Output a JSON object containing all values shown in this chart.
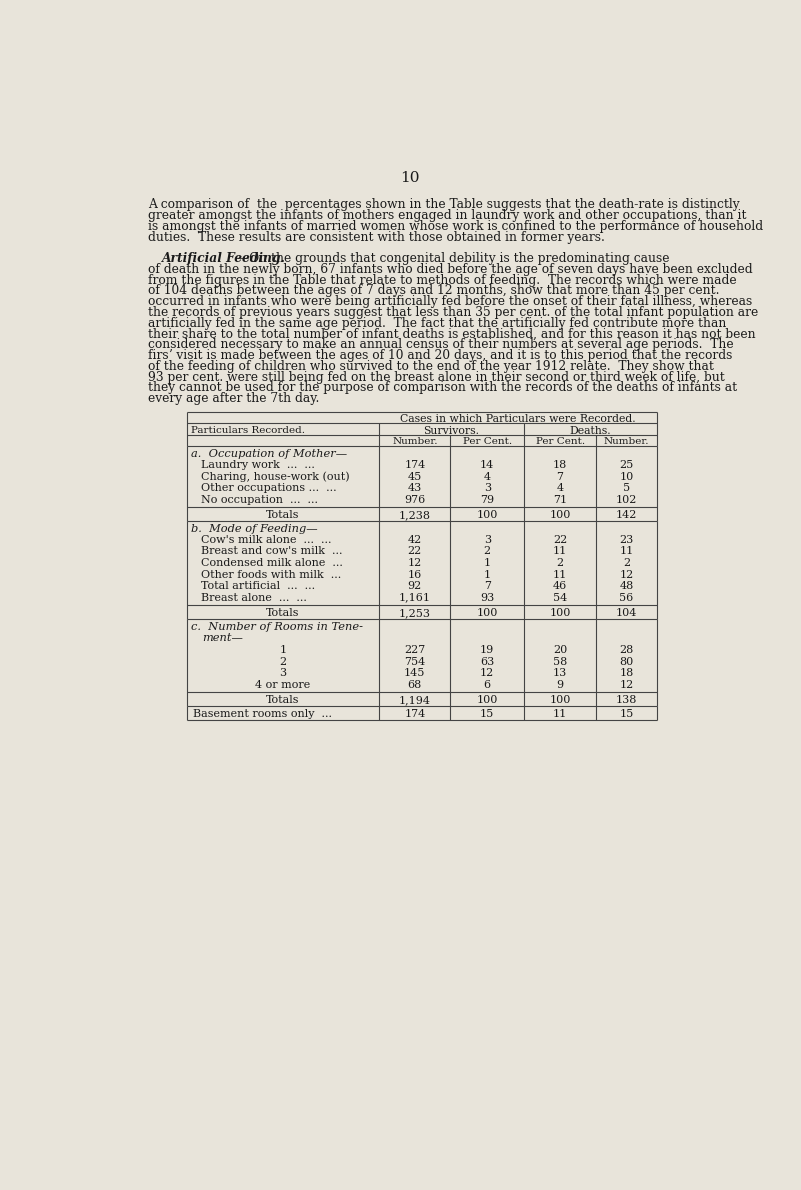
{
  "page_number": "10",
  "bg_color": "#e8e4da",
  "text_color": "#1a1a1a",
  "p1_lines": [
    "A comparison of  the  percentages shown in the Table suggests that the death-rate is distinctly",
    "greater amongst the infants of mothers engaged in laundry work and other occupations, than it",
    "is amongst the infants of married women whose work is confined to the performance of household",
    "duties.  These results are consistent with those obtained in former years."
  ],
  "p2_title": "Artificial Feeding.",
  "p2_first": "—On the grounds that congenital debility is the predominating cause",
  "p2_rest": [
    "of death in the newly born, 67 infants who died before the age of seven days have been excluded",
    "from the figures in the Table that relate to methods of feeding.  The records which were made",
    "of 104 deaths between the ages of 7 days and 12 months, show that more than 45 per cent.",
    "occurred in infants who were being artificially fed before the onset of their fatal illness, whereas",
    "the records of previous years suggest that less than 35 per cent. of the total infant population are",
    "artificially fed in the same age period.  The fact that the artificially fed contribute more than",
    "their share to the total number of infant deaths is established, and for this reason it has not been",
    "considered necessary to make an annual census of their numbers at several age periods.  The",
    "firsʼ visit is made between the ages of 10 and 20 days, and it is to this period that the records",
    "of the feeding of children who survived to the end of the year 1912 relate.  They show that",
    "93 per cent. were still being fed on the breast alone in their second or third week of life, but",
    "they cannot be used for the purpose of comparison with the records of the deaths of infants at",
    "every age after the 7th day."
  ],
  "table": {
    "header_main": "Cases in which Particulars were Recorded.",
    "header_survivors": "Survivors.",
    "header_deaths": "Deaths.",
    "col_headers": [
      "Number.",
      "Per Cent.",
      "Per Cent.",
      "Number."
    ],
    "section_a_title": "a.  Occupation of Mother—",
    "section_a_rows": [
      [
        "Laundry work  ...  ...",
        "174",
        "14",
        "18",
        "25"
      ],
      [
        "Charing, house-work (out)",
        "45",
        "4",
        "7",
        "10"
      ],
      [
        "Other occupations ...  ...",
        "43",
        "3",
        "4",
        "5"
      ],
      [
        "No occupation  ...  ...",
        "976",
        "79",
        "71",
        "102"
      ]
    ],
    "section_a_total": [
      "Totals",
      "1,238",
      "100",
      "100",
      "142"
    ],
    "section_b_title": "b.  Mode of Feeding—",
    "section_b_rows": [
      [
        "Cow's milk alone  ...  ...",
        "42",
        "3",
        "22",
        "23"
      ],
      [
        "Breast and cow's milk  ...",
        "22",
        "2",
        "11",
        "11"
      ],
      [
        "Condensed milk alone  ...",
        "12",
        "1",
        "2",
        "2"
      ],
      [
        "Other foods with milk  ...",
        "16",
        "1",
        "11",
        "12"
      ],
      [
        "Total artificial  ...  ...",
        "92",
        "7",
        "46",
        "48"
      ],
      [
        "Breast alone  ...  ...",
        "1,161",
        "93",
        "54",
        "56"
      ]
    ],
    "section_b_total": [
      "Totals",
      "1,253",
      "100",
      "100",
      "104"
    ],
    "section_c_title_1": "c.  Number of Rooms in Tene-",
    "section_c_title_2": "ment—",
    "section_c_rows": [
      [
        "1",
        "227",
        "19",
        "20",
        "28"
      ],
      [
        "2",
        "754",
        "63",
        "58",
        "80"
      ],
      [
        "3",
        "145",
        "12",
        "13",
        "18"
      ],
      [
        "4 or more",
        "68",
        "6",
        "9",
        "12"
      ]
    ],
    "section_c_total": [
      "Totals",
      "1,194",
      "100",
      "100",
      "138"
    ],
    "basement_row": [
      "Basement rooms only  ...",
      "174",
      "15",
      "11",
      "15"
    ]
  }
}
